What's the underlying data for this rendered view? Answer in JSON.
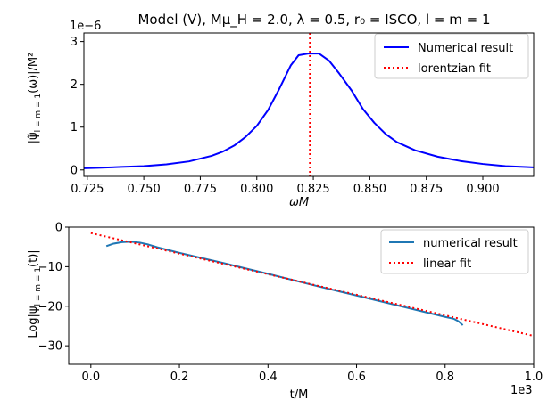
{
  "chart_data": [
    {
      "type": "line",
      "title": "Model (V), Mμ_H = 2.0, λ = 0.5, r₀ = ISCO, l = m = 1",
      "xlabel": "ωM",
      "ylabel": "|ψ̃_{l=m=1}(ω)|/M²",
      "ylabel_main": "|ψ̃",
      "ylabel_sub": "l = m = 1",
      "ylabel_tail": "(ω)|/M²",
      "offset_label": "1e−6",
      "xlim": [
        0.7235,
        0.9225
      ],
      "ylim": [
        -0.15,
        3.2
      ],
      "xticks": [
        0.725,
        0.75,
        0.775,
        0.8,
        0.825,
        0.85,
        0.875,
        0.9
      ],
      "xtick_labels": [
        "0.725",
        "0.750",
        "0.775",
        "0.800",
        "0.825",
        "0.850",
        "0.875",
        "0.900"
      ],
      "yticks": [
        0,
        1,
        2,
        3
      ],
      "ytick_labels": [
        "0",
        "1",
        "2",
        "3"
      ],
      "legend_position": "top-right",
      "series": [
        {
          "name": "Numerical result",
          "color": "#0000ff",
          "style": "solid",
          "x": [
            0.7235,
            0.73,
            0.74,
            0.75,
            0.76,
            0.77,
            0.78,
            0.785,
            0.79,
            0.795,
            0.8,
            0.805,
            0.81,
            0.815,
            0.8185,
            0.823,
            0.8275,
            0.832,
            0.8365,
            0.842,
            0.847,
            0.852,
            0.857,
            0.862,
            0.87,
            0.88,
            0.89,
            0.9,
            0.91,
            0.9225
          ],
          "y": [
            0.04,
            0.05,
            0.07,
            0.09,
            0.13,
            0.2,
            0.33,
            0.43,
            0.57,
            0.77,
            1.03,
            1.4,
            1.9,
            2.44,
            2.68,
            2.72,
            2.72,
            2.55,
            2.25,
            1.85,
            1.42,
            1.1,
            0.84,
            0.65,
            0.46,
            0.31,
            0.21,
            0.14,
            0.09,
            0.06
          ]
        },
        {
          "name": "lorentzian fit",
          "color": "#ff0000",
          "style": "dotted",
          "vline_x": 0.8235
        }
      ]
    },
    {
      "type": "line",
      "title": "",
      "xlabel": "t/M",
      "ylabel": "Log|ψ_{l=m=1}(t)|",
      "ylabel_main": "Log|ψ",
      "ylabel_sub": "l = m = 1",
      "ylabel_tail": "(t)|",
      "offset_label": "1e3",
      "xlim": [
        -0.05,
        1.0
      ],
      "ylim": [
        -34.7,
        0
      ],
      "xticks": [
        0.0,
        0.2,
        0.4,
        0.6,
        0.8,
        1.0
      ],
      "xtick_labels": [
        "0.0",
        "0.2",
        "0.4",
        "0.6",
        "0.8",
        "1.0"
      ],
      "yticks": [
        0,
        -10,
        -20,
        -30
      ],
      "ytick_labels": [
        "0",
        "−10",
        "−20",
        "−30"
      ],
      "legend_position": "top-right",
      "series": [
        {
          "name": "numerical result",
          "color": "#1f77b4",
          "style": "solid",
          "x": [
            0.035,
            0.05,
            0.07,
            0.09,
            0.11,
            0.13,
            0.15,
            0.2,
            0.3,
            0.4,
            0.5,
            0.6,
            0.7,
            0.8,
            0.82,
            0.83,
            0.84
          ],
          "y": [
            -4.8,
            -4.2,
            -3.8,
            -3.7,
            -3.9,
            -4.4,
            -5.1,
            -6.5,
            -9.1,
            -11.8,
            -14.6,
            -17.3,
            -20.0,
            -22.7,
            -23.2,
            -23.8,
            -24.8
          ]
        },
        {
          "name": "linear fit",
          "color": "#ff0000",
          "style": "dotted",
          "x": [
            0.0,
            1.0
          ],
          "y": [
            -1.5,
            -27.5
          ]
        }
      ]
    }
  ]
}
